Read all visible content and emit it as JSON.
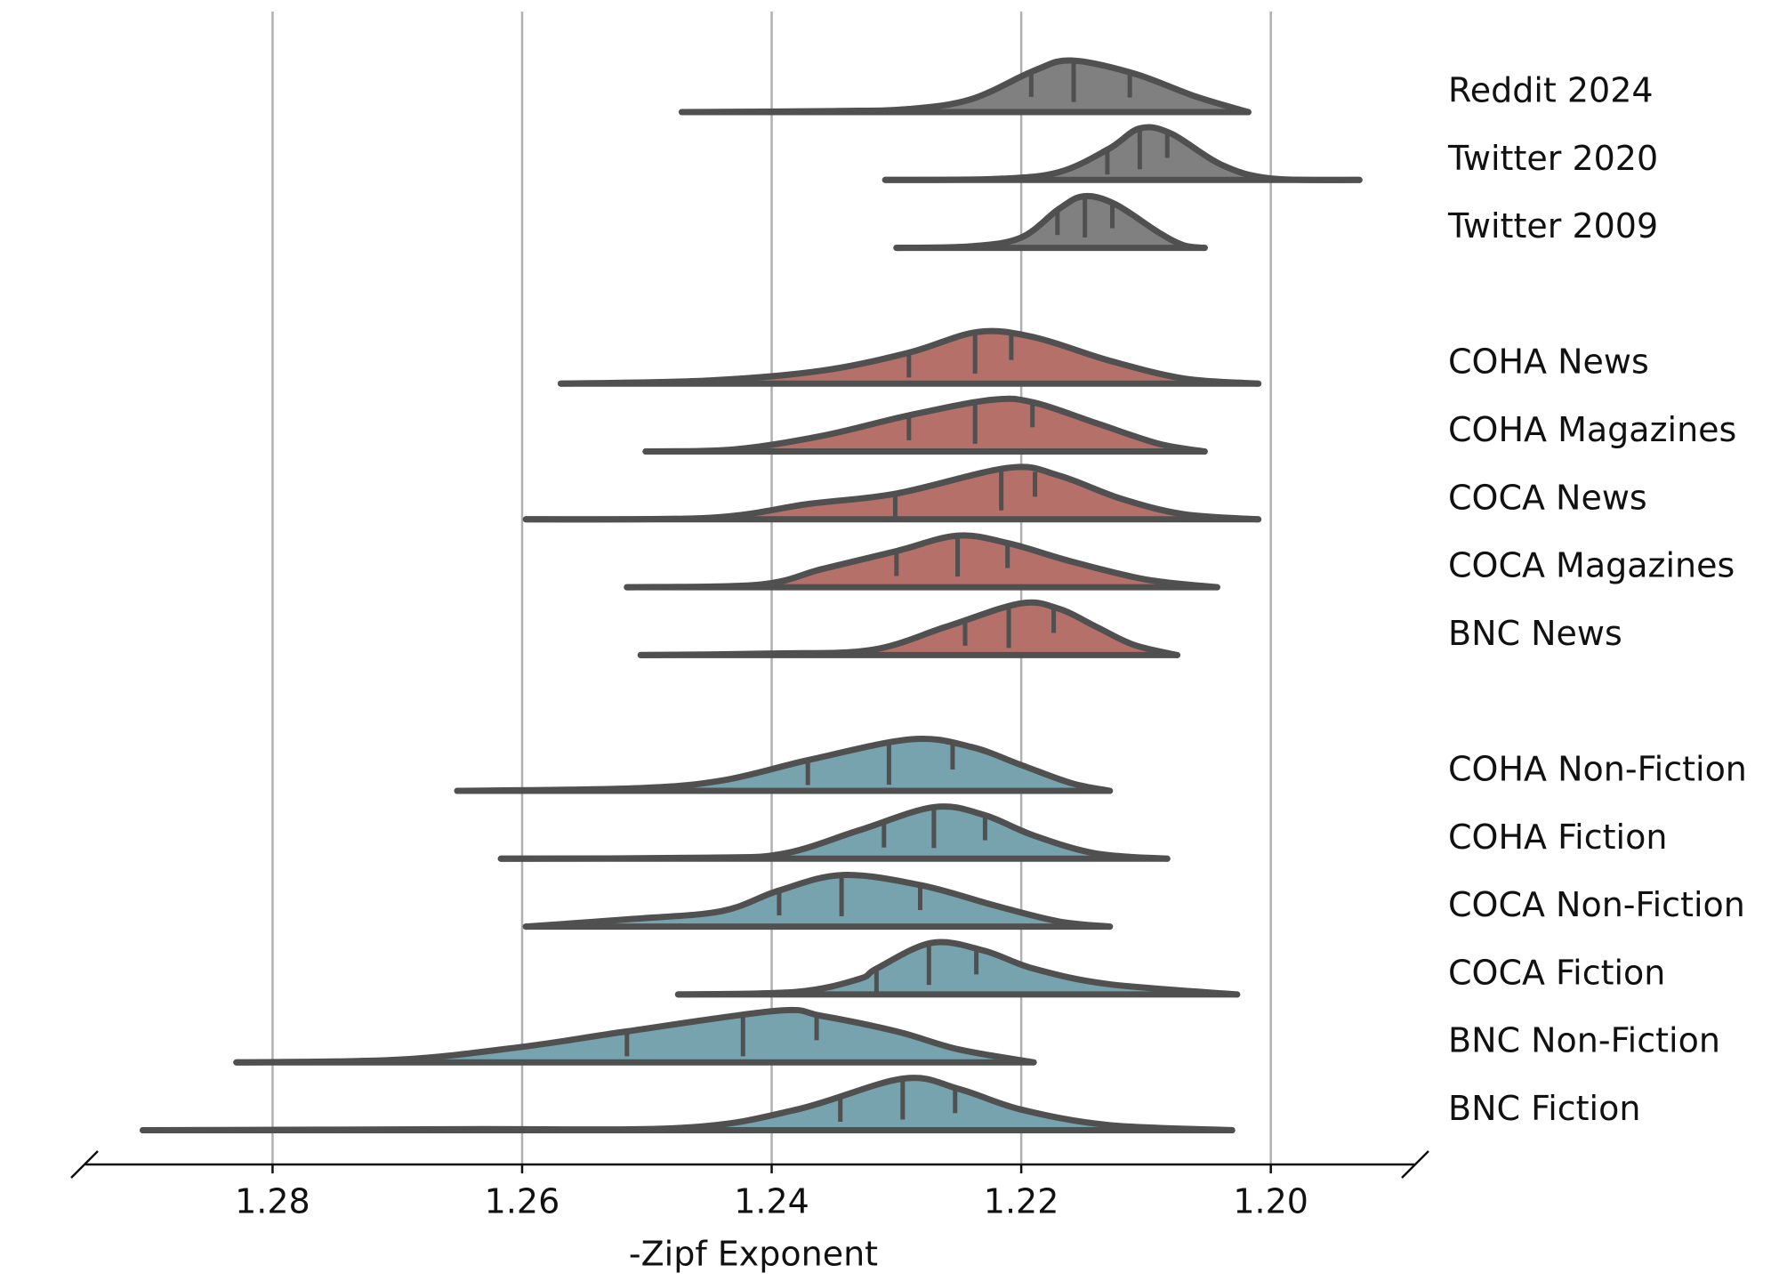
{
  "chart_data": {
    "type": "ridgeline",
    "xlabel": "-Zipf Exponent",
    "xlim": [
      1.295,
      1.1885
    ],
    "xticks": [
      1.28,
      1.26,
      1.24,
      1.22,
      {
        "value": 1.2,
        "label": "1.20"
      }
    ],
    "grid": true,
    "series": [
      {
        "name": "Reddit 2024",
        "color": "#808080",
        "x": [
          1.2472,
          1.235,
          1.229,
          1.224,
          1.219,
          1.216,
          1.211,
          1.206,
          1.2018
        ],
        "density": [
          0,
          0.02,
          0.06,
          0.25,
          0.8,
          1,
          0.75,
          0.3,
          0
        ],
        "quartiles": [
          1.2192,
          1.2158,
          1.2113
        ]
      },
      {
        "name": "Twitter 2020",
        "color": "#808080",
        "x": [
          1.2309,
          1.222,
          1.217,
          1.213,
          1.2105,
          1.208,
          1.204,
          1.2,
          1.1929
        ],
        "density": [
          0,
          0.02,
          0.15,
          0.6,
          1,
          0.9,
          0.3,
          0.03,
          0
        ],
        "quartiles": [
          1.2131,
          1.2105,
          1.2083
        ]
      },
      {
        "name": "Twitter 2009",
        "color": "#808080",
        "x": [
          1.23,
          1.224,
          1.22,
          1.217,
          1.215,
          1.2125,
          1.209,
          1.207,
          1.2053
        ],
        "density": [
          0,
          0.03,
          0.2,
          0.75,
          1,
          0.85,
          0.3,
          0.05,
          0
        ],
        "quartiles": [
          1.2171,
          1.2149,
          1.2127
        ]
      },
      {
        "name": "COHA News",
        "color": "#b5706a",
        "x": [
          1.2569,
          1.245,
          1.236,
          1.229,
          1.2235,
          1.219,
          1.213,
          1.207,
          1.201
        ],
        "density": [
          0,
          0.06,
          0.25,
          0.6,
          1,
          0.9,
          0.45,
          0.1,
          0
        ],
        "quartiles": [
          1.229,
          1.2237,
          1.2208
        ]
      },
      {
        "name": "COHA Magazines",
        "color": "#b5706a",
        "x": [
          1.2501,
          1.243,
          1.236,
          1.229,
          1.2224,
          1.219,
          1.214,
          1.209,
          1.2053
        ],
        "density": [
          0,
          0.04,
          0.3,
          0.7,
          1,
          0.95,
          0.55,
          0.15,
          0
        ],
        "quartiles": [
          1.229,
          1.2237,
          1.2191
        ]
      },
      {
        "name": "COCA News",
        "color": "#b5706a",
        "x": [
          1.2597,
          1.245,
          1.237,
          1.23,
          1.221,
          1.217,
          1.212,
          1.207,
          1.201
        ],
        "density": [
          0,
          0.03,
          0.3,
          0.5,
          1,
          0.85,
          0.4,
          0.1,
          0
        ],
        "quartiles": [
          1.2301,
          1.2216,
          1.2189
        ]
      },
      {
        "name": "COCA Magazines",
        "color": "#b5706a",
        "x": [
          1.2516,
          1.241,
          1.236,
          1.23,
          1.2251,
          1.221,
          1.216,
          1.21,
          1.2043
        ],
        "density": [
          0,
          0.05,
          0.35,
          0.7,
          1,
          0.85,
          0.5,
          0.15,
          0
        ],
        "quartiles": [
          1.23,
          1.2251,
          1.2211
        ]
      },
      {
        "name": "BNC News",
        "color": "#b5706a",
        "x": [
          1.2505,
          1.24,
          1.232,
          1.226,
          1.2201,
          1.217,
          1.214,
          1.211,
          1.2075
        ],
        "density": [
          0,
          0.03,
          0.1,
          0.55,
          1,
          0.9,
          0.55,
          0.2,
          0
        ],
        "quartiles": [
          1.2245,
          1.221,
          1.2174
        ]
      },
      {
        "name": "COHA Non-Fiction",
        "color": "#76a3ad",
        "x": [
          1.2652,
          1.251,
          1.244,
          1.237,
          1.2288,
          1.224,
          1.22,
          1.216,
          1.2129
        ],
        "density": [
          0,
          0.05,
          0.2,
          0.6,
          1,
          0.85,
          0.5,
          0.15,
          0
        ],
        "quartiles": [
          1.2371,
          1.2306,
          1.2255
        ]
      },
      {
        "name": "COHA Fiction",
        "color": "#76a3ad",
        "x": [
          1.2617,
          1.245,
          1.239,
          1.233,
          1.227,
          1.223,
          1.219,
          1.214,
          1.2083
        ],
        "density": [
          0,
          0.02,
          0.1,
          0.55,
          1,
          0.85,
          0.45,
          0.1,
          0
        ],
        "quartiles": [
          1.231,
          1.227,
          1.2229
        ]
      },
      {
        "name": "COCA Non-Fiction",
        "color": "#76a3ad",
        "x": [
          1.2597,
          1.251,
          1.244,
          1.2394,
          1.2343,
          1.228,
          1.222,
          1.217,
          1.2129
        ],
        "density": [
          0,
          0.15,
          0.3,
          0.7,
          1,
          0.8,
          0.4,
          0.1,
          0
        ],
        "quartiles": [
          1.2394,
          1.2344,
          1.2281
        ]
      },
      {
        "name": "COCA Fiction",
        "color": "#76a3ad",
        "x": [
          1.2475,
          1.238,
          1.233,
          1.2316,
          1.2272,
          1.223,
          1.219,
          1.213,
          1.2027
        ],
        "density": [
          0,
          0.05,
          0.3,
          0.5,
          1,
          0.85,
          0.5,
          0.2,
          0
        ],
        "quartiles": [
          1.2316,
          1.2274,
          1.2236
        ]
      },
      {
        "name": "BNC Non-Fiction",
        "color": "#76a3ad",
        "x": [
          1.2829,
          1.27,
          1.26,
          1.2516,
          1.2396,
          1.236,
          1.23,
          1.225,
          1.219
        ],
        "density": [
          0,
          0.05,
          0.3,
          0.6,
          1,
          0.9,
          0.6,
          0.25,
          0
        ],
        "quartiles": [
          1.2516,
          1.2423,
          1.2364
        ]
      },
      {
        "name": "BNC Fiction",
        "color": "#76a3ad",
        "x": [
          1.2904,
          1.265,
          1.247,
          1.238,
          1.2295,
          1.225,
          1.22,
          1.213,
          1.2031
        ],
        "density": [
          0,
          0.02,
          0.05,
          0.4,
          1,
          0.8,
          0.4,
          0.1,
          0
        ],
        "quartiles": [
          1.2345,
          1.2295,
          1.2253
        ]
      }
    ]
  }
}
